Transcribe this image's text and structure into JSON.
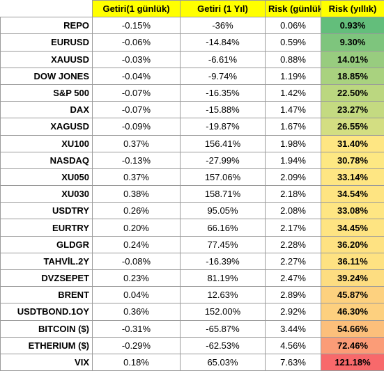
{
  "table": {
    "headers": [
      "",
      "Getiri(1 günlük)",
      "Getiri (1 Yıl)",
      "Risk (günlük)",
      "Risk (yıllık)"
    ],
    "rows": [
      {
        "name": "REPO",
        "d1": "-0.15%",
        "y1": "-36%",
        "rd": "0.06%",
        "ry": "0.93%",
        "color": "#63be7b"
      },
      {
        "name": "EURUSD",
        "d1": "-0.06%",
        "y1": "-14.84%",
        "rd": "0.59%",
        "ry": "9.30%",
        "color": "#7ec57d"
      },
      {
        "name": "XAUUSD",
        "d1": "-0.03%",
        "y1": "-6.61%",
        "rd": "0.88%",
        "ry": "14.01%",
        "color": "#98cc7f"
      },
      {
        "name": "DOW JONES",
        "d1": "-0.04%",
        "y1": "-9.74%",
        "rd": "1.19%",
        "ry": "18.85%",
        "color": "#a9d27f"
      },
      {
        "name": "S&P 500",
        "d1": "-0.07%",
        "y1": "-16.35%",
        "rd": "1.42%",
        "ry": "22.50%",
        "color": "#bbd780"
      },
      {
        "name": "DAX",
        "d1": "-0.07%",
        "y1": "-15.88%",
        "rd": "1.47%",
        "ry": "23.27%",
        "color": "#c4da81"
      },
      {
        "name": "XAGUSD",
        "d1": "-0.09%",
        "y1": "-19.87%",
        "rd": "1.67%",
        "ry": "26.55%",
        "color": "#d3de82"
      },
      {
        "name": "XU100",
        "d1": "0.37%",
        "y1": "156.41%",
        "rd": "1.98%",
        "ry": "31.40%",
        "color": "#fee683"
      },
      {
        "name": "NASDAQ",
        "d1": "-0.13%",
        "y1": "-27.99%",
        "rd": "1.94%",
        "ry": "30.78%",
        "color": "#fde883"
      },
      {
        "name": "XU050",
        "d1": "0.37%",
        "y1": "157.06%",
        "rd": "2.09%",
        "ry": "33.14%",
        "color": "#fee683"
      },
      {
        "name": "XU030",
        "d1": "0.38%",
        "y1": "158.71%",
        "rd": "2.18%",
        "ry": "34.54%",
        "color": "#fee482"
      },
      {
        "name": "USDTRY",
        "d1": "0.26%",
        "y1": "95.05%",
        "rd": "2.08%",
        "ry": "33.08%",
        "color": "#fee683"
      },
      {
        "name": "EURTRY",
        "d1": "0.20%",
        "y1": "66.16%",
        "rd": "2.17%",
        "ry": "34.45%",
        "color": "#fee482"
      },
      {
        "name": "GLDGR",
        "d1": "0.24%",
        "y1": "77.45%",
        "rd": "2.28%",
        "ry": "36.20%",
        "color": "#fee282"
      },
      {
        "name": "TAHVİL.2Y",
        "d1": "-0.08%",
        "y1": "-16.39%",
        "rd": "2.27%",
        "ry": "36.11%",
        "color": "#fee282"
      },
      {
        "name": "DVZSEPET",
        "d1": "0.23%",
        "y1": "81.19%",
        "rd": "2.47%",
        "ry": "39.24%",
        "color": "#fddd81"
      },
      {
        "name": "BRENT",
        "d1": "0.04%",
        "y1": "12.63%",
        "rd": "2.89%",
        "ry": "45.87%",
        "color": "#fdd17f"
      },
      {
        "name": "USDTBOND.1OY",
        "d1": "0.36%",
        "y1": "152.00%",
        "rd": "2.92%",
        "ry": "46.30%",
        "color": "#fdd07f"
      },
      {
        "name": "BITCOIN ($)",
        "d1": "-0.31%",
        "y1": "-65.87%",
        "rd": "3.44%",
        "ry": "54.66%",
        "color": "#fcbf7b"
      },
      {
        "name": "ETHERIUM ($)",
        "d1": "-0.29%",
        "y1": "-62.53%",
        "rd": "4.56%",
        "ry": "72.46%",
        "color": "#fb9c77"
      },
      {
        "name": "VIX",
        "d1": "0.18%",
        "y1": "65.03%",
        "rd": "7.63%",
        "ry": "121.18%",
        "color": "#f8696b"
      }
    ]
  }
}
